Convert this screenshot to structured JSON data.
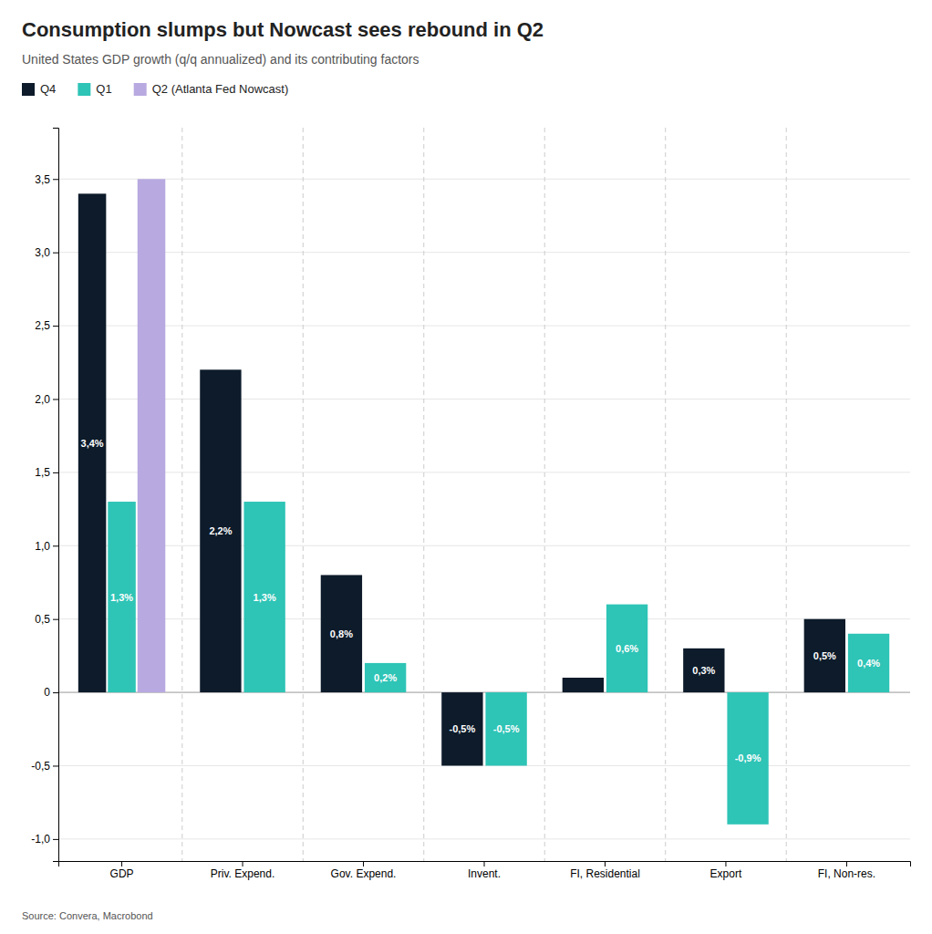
{
  "chart_data": {
    "type": "bar",
    "title": "Consumption slumps but Nowcast sees rebound in Q2",
    "subtitle": "United States GDP growth (q/q annualized) and its contributing factors",
    "annotations": [
      "Source: Convera, Macrobond"
    ],
    "categories": [
      "GDP",
      "Priv. Expend.",
      "Gov. Expend.",
      "Invent.",
      "FI, Residential",
      "Export",
      "FI, Non-res."
    ],
    "series": [
      {
        "name": "Q4",
        "color": "#0d1b2a",
        "values": [
          3.4,
          2.2,
          0.8,
          -0.5,
          0.1,
          0.3,
          0.5
        ],
        "data_labels": true,
        "value_labels": [
          "3,4%",
          "2,2%",
          "0,8%",
          "-0,5%",
          null,
          "0,3%",
          "0,5%"
        ]
      },
      {
        "name": "Q1",
        "color": "#2ec4b6",
        "values": [
          1.3,
          1.3,
          0.2,
          -0.5,
          0.6,
          -0.9,
          0.4
        ],
        "data_labels": true,
        "value_labels": [
          "1,3%",
          "1,3%",
          "0,2%",
          "-0,5%",
          "0,6%",
          "-0,9%",
          "0,4%"
        ]
      },
      {
        "name": "Q2 (Atlanta Fed Nowcast)",
        "color": "#b8a9e0",
        "values": [
          3.5,
          null,
          null,
          null,
          null,
          null,
          null
        ]
      }
    ],
    "ylim": [
      -1.15,
      3.85
    ],
    "yticks": [
      {
        "value": -1.0,
        "label": "-1,0"
      },
      {
        "value": -0.5,
        "label": "-0,5"
      },
      0,
      {
        "value": 0.5,
        "label": "0,5"
      },
      {
        "value": 1.0,
        "label": "1,0"
      },
      {
        "value": 1.5,
        "label": "1,5"
      },
      {
        "value": 2.0,
        "label": "2,0"
      },
      {
        "value": 2.5,
        "label": "2,5"
      },
      {
        "value": 3.0,
        "label": "3,0"
      },
      {
        "value": 3.5,
        "label": "3,5"
      }
    ],
    "grid": true,
    "legend": "top"
  }
}
